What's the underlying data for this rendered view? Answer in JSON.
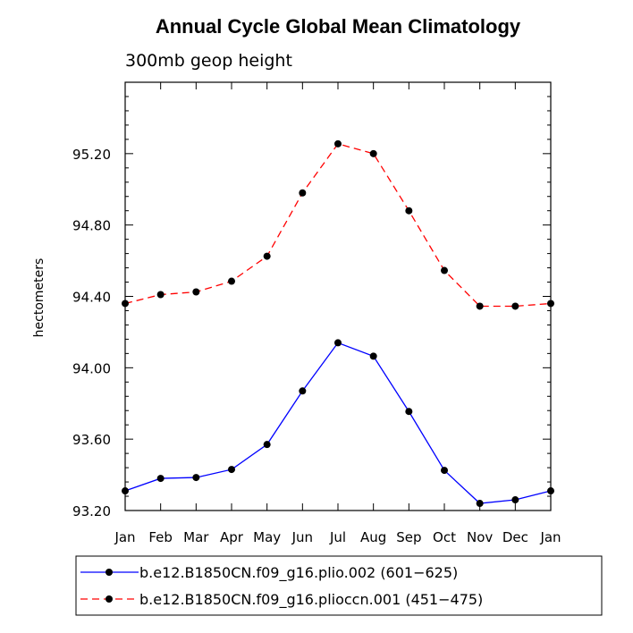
{
  "chart_data": {
    "type": "line",
    "title": "Annual Cycle Global Mean Climatology",
    "subtitle": "300mb geop height",
    "xlabel": "",
    "ylabel": "hectometers",
    "categories": [
      "Jan",
      "Feb",
      "Mar",
      "Apr",
      "May",
      "Jun",
      "Jul",
      "Aug",
      "Sep",
      "Oct",
      "Nov",
      "Dec",
      "Jan"
    ],
    "ylim": [
      93.2,
      95.6
    ],
    "yticks": [
      "93.20",
      "93.60",
      "94.00",
      "94.40",
      "94.80",
      "95.20"
    ],
    "grid": false,
    "legend_position": "bottom",
    "series": [
      {
        "name": "b.e12.B1850CN.f09_g16.plio.002 (601−625)",
        "color": "#0000ff",
        "dash": "solid",
        "values": [
          93.31,
          93.38,
          93.385,
          93.43,
          93.57,
          93.87,
          94.14,
          94.065,
          93.755,
          93.425,
          93.24,
          93.26,
          93.31
        ]
      },
      {
        "name": "b.e12.B1850CN.f09_g16.plioccn.001 (451−475)",
        "color": "#ff0000",
        "dash": "dashed",
        "values": [
          94.36,
          94.41,
          94.425,
          94.485,
          94.625,
          94.98,
          95.255,
          95.2,
          94.88,
          94.545,
          94.345,
          94.345,
          94.36
        ]
      }
    ]
  }
}
